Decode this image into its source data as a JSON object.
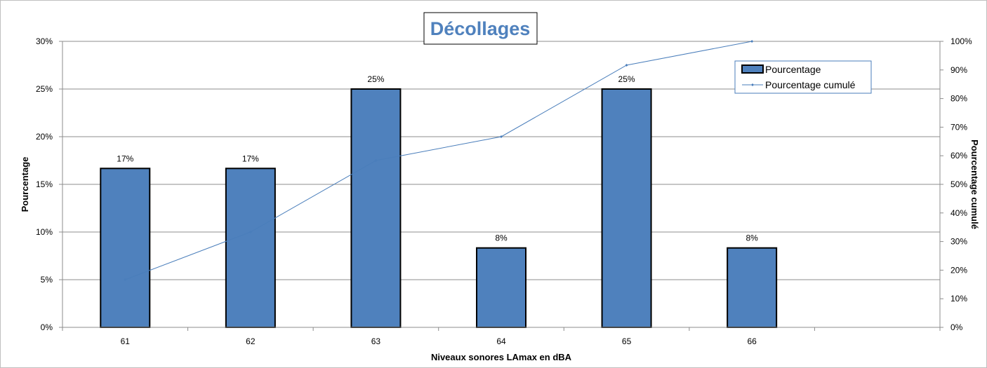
{
  "chart_data": {
    "type": "bar",
    "title": "Décollages",
    "xlabel": "Niveaux sonores LAmax en dBA",
    "ylabel": "Pourcentage",
    "y2label": "Pourcentage cumulé",
    "categories": [
      "61",
      "62",
      "63",
      "64",
      "65",
      "66"
    ],
    "ylim": [
      0,
      30
    ],
    "y2lim": [
      0,
      100
    ],
    "y_ticks": [
      "0%",
      "5%",
      "10%",
      "15%",
      "20%",
      "25%",
      "30%"
    ],
    "y2_ticks": [
      "0%",
      "10%",
      "20%",
      "30%",
      "40%",
      "50%",
      "60%",
      "70%",
      "80%",
      "90%",
      "100%"
    ],
    "series": [
      {
        "name": "Pourcentage",
        "kind": "bar",
        "axis": "left",
        "values": [
          16.67,
          16.67,
          25,
          8.33,
          25,
          8.33
        ],
        "labels": [
          "17%",
          "17%",
          "25%",
          "8%",
          "25%",
          "8%"
        ],
        "color": "#4f81bd"
      },
      {
        "name": "Pourcentage cumulé",
        "kind": "line",
        "axis": "right",
        "values": [
          16.67,
          33.33,
          58.33,
          66.67,
          91.67,
          100
        ],
        "color": "#4a7ebb"
      }
    ],
    "legend_position": "top-right",
    "grid": true
  }
}
